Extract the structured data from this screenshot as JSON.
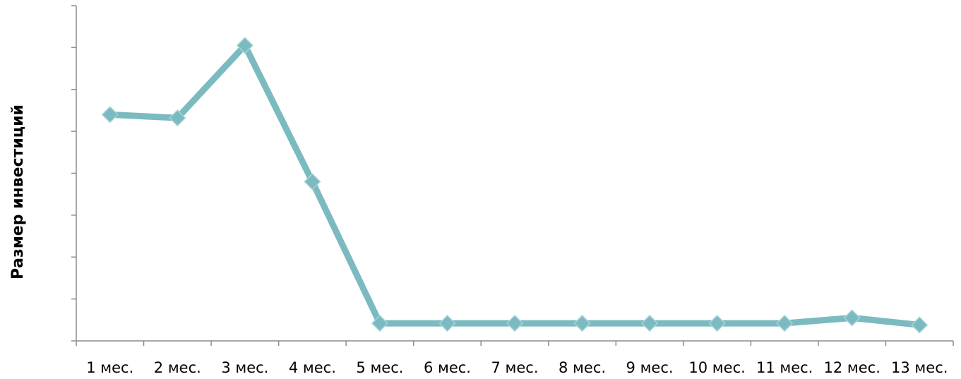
{
  "chart_data": {
    "type": "line",
    "title": "",
    "xlabel": "",
    "ylabel": "Размер инвестиций",
    "categories": [
      "1 мес.",
      "2 мес.",
      "3 мес.",
      "4 мес.",
      "5 мес.",
      "6 мес.",
      "7 мес.",
      "8 мес.",
      "9 мес.",
      "10 мес.",
      "11 мес.",
      "12 мес.",
      "13 мес."
    ],
    "series": [
      {
        "values": [
          5.4,
          5.32,
          7.05,
          3.8,
          0.42,
          0.42,
          0.42,
          0.42,
          0.42,
          0.42,
          0.42,
          0.55,
          0.38
        ]
      }
    ],
    "ylim": [
      0,
      8
    ],
    "y_tick_labels_shown": false,
    "grid": false,
    "legend": "none",
    "colors": {
      "line": "#7bbac1",
      "marker": "#7bbac1",
      "axis": "#8c8c8c"
    }
  }
}
